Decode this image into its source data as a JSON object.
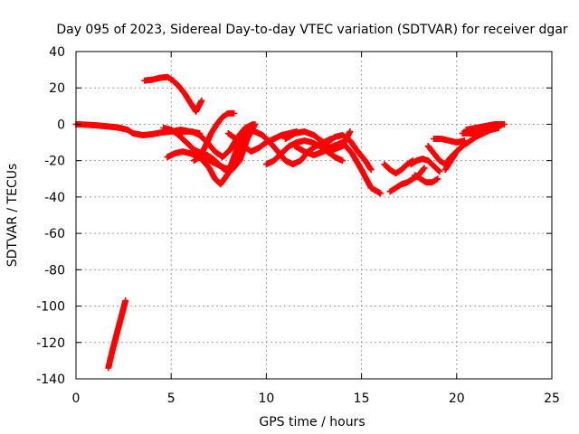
{
  "chart_data": {
    "type": "scatter",
    "title": "Day 095 of 2023, Sidereal Day-to-day VTEC variation (SDTVAR) for receiver dgar",
    "xlabel": "GPS time / hours",
    "ylabel": "SDTVAR / TECUs",
    "xlim": [
      0,
      25
    ],
    "ylim": [
      -140,
      40
    ],
    "xticks": [
      0,
      5,
      10,
      15,
      20,
      25
    ],
    "xtick_labels": [
      "0",
      "5",
      "10",
      "15",
      "20",
      "25"
    ],
    "yticks": [
      40,
      20,
      0,
      -20,
      -40,
      -60,
      -80,
      -100,
      -120,
      -140
    ],
    "ytick_labels": [
      "40",
      "20",
      "0",
      "-20",
      "-40",
      "-60",
      "-80",
      "-100",
      "-120",
      "-140"
    ],
    "grid": true,
    "marker": "+",
    "color": "#ff0000",
    "series": [
      {
        "name": "s1",
        "x": [
          0,
          1,
          1.5,
          2,
          2.3,
          2.7,
          3,
          3.5,
          4,
          4.5,
          5,
          5.5,
          6,
          6.5
        ],
        "y": [
          0,
          -0.5,
          -1,
          -1.5,
          -2,
          -3,
          -5,
          -6,
          -5.5,
          -4.5,
          -4,
          -3,
          -4,
          -5
        ]
      },
      {
        "name": "s2",
        "x": [
          3.6,
          4,
          4.4,
          4.8,
          5.1,
          5.4,
          5.7,
          6,
          6.3,
          6.6
        ],
        "y": [
          24,
          24.5,
          25.5,
          26,
          24,
          21,
          17,
          12,
          7,
          13
        ]
      },
      {
        "name": "s3",
        "x": [
          1.7,
          1.9,
          2.1,
          2.3,
          2.5,
          2.6
        ],
        "y": [
          -134,
          -125,
          -117,
          -109,
          -101,
          -97
        ]
      },
      {
        "name": "s4",
        "x": [
          4.8,
          5.2,
          5.6,
          6,
          6.5,
          7,
          7.3,
          7.6,
          8,
          8.4,
          8.8
        ],
        "y": [
          -18,
          -16,
          -15,
          -16,
          -18,
          -24,
          -30,
          -33,
          -27,
          -15,
          -3
        ]
      },
      {
        "name": "s5",
        "x": [
          4.6,
          5,
          5.4,
          5.8,
          6.2,
          6.6,
          7,
          7.4,
          7.8,
          8.2,
          8.6,
          9,
          9.4
        ],
        "y": [
          -2,
          -3,
          -6,
          -10,
          -14,
          -16,
          -20,
          -22,
          -24,
          -25,
          -20,
          -8,
          0
        ]
      },
      {
        "name": "s6",
        "x": [
          6.6,
          6.9,
          7.2,
          7.5,
          7.8,
          8.1,
          8.4,
          8.7,
          9,
          9.4
        ],
        "y": [
          -15,
          -17,
          -19,
          -22,
          -25,
          -24,
          -18,
          -10,
          -3,
          0
        ]
      },
      {
        "name": "s7",
        "x": [
          6.2,
          6.5,
          6.8,
          7.1,
          7.4,
          7.7,
          8,
          8.3
        ],
        "y": [
          -20,
          -18,
          -12,
          -5,
          0,
          4,
          6,
          6
        ]
      },
      {
        "name": "s8",
        "x": [
          5.3,
          5.7,
          6.1,
          6.5,
          6.9,
          7.3,
          7.7,
          8.1,
          8.5,
          8.9,
          9.3
        ],
        "y": [
          -5,
          -4,
          -4,
          -6,
          -10,
          -15,
          -18,
          -14,
          -7,
          -2,
          0
        ]
      },
      {
        "name": "s9",
        "x": [
          8,
          8.4,
          8.8,
          9.2,
          9.6,
          10,
          10.4,
          10.8,
          11.2,
          11.6
        ],
        "y": [
          -5,
          -8,
          -12,
          -15,
          -13,
          -10,
          -8,
          -6,
          -5,
          -4
        ]
      },
      {
        "name": "s10",
        "x": [
          9,
          9.4,
          9.8,
          10.2,
          10.6,
          11,
          11.4,
          11.8,
          12.2,
          12.6,
          13,
          13.4
        ],
        "y": [
          -3,
          -4,
          -6,
          -10,
          -15,
          -20,
          -22,
          -20,
          -15,
          -12,
          -10,
          -8
        ]
      },
      {
        "name": "s11",
        "x": [
          10,
          10.4,
          10.8,
          11.2,
          11.6,
          12,
          12.4,
          12.8,
          13.2,
          13.6,
          14
        ],
        "y": [
          -22,
          -20,
          -16,
          -12,
          -10,
          -9,
          -10,
          -12,
          -15,
          -18,
          -20
        ]
      },
      {
        "name": "s12",
        "x": [
          11,
          11.5,
          12,
          12.5,
          13,
          13.5,
          14,
          14.4
        ],
        "y": [
          -8,
          -5,
          -4,
          -6,
          -10,
          -14,
          -12,
          -4
        ]
      },
      {
        "name": "s13",
        "x": [
          11.5,
          12,
          12.5,
          13,
          13.5,
          14,
          14.5,
          15,
          15.5,
          16
        ],
        "y": [
          -12,
          -15,
          -17,
          -15,
          -12,
          -10,
          -16,
          -25,
          -35,
          -38
        ]
      },
      {
        "name": "s14",
        "x": [
          13.2,
          13.6,
          14,
          14.4,
          14.8,
          15.2,
          15.5
        ],
        "y": [
          -10,
          -7,
          -6,
          -9,
          -15,
          -20,
          -25
        ]
      },
      {
        "name": "s15",
        "x": [
          16.2,
          16.5,
          16.8,
          17.1,
          17.4,
          17.7
        ],
        "y": [
          -22,
          -25,
          -27,
          -25,
          -22,
          -20
        ]
      },
      {
        "name": "s16",
        "x": [
          16.5,
          16.8,
          17.1,
          17.4,
          17.7,
          18,
          18.3
        ],
        "y": [
          -37,
          -35,
          -33,
          -32,
          -30,
          -28,
          -24
        ]
      },
      {
        "name": "s17",
        "x": [
          17.6,
          17.9,
          18.2,
          18.5,
          18.8,
          19.1
        ],
        "y": [
          -22,
          -20,
          -19,
          -20,
          -23,
          -26
        ]
      },
      {
        "name": "s18",
        "x": [
          17.8,
          18.1,
          18.4,
          18.7,
          19
        ],
        "y": [
          -28,
          -30,
          -32,
          -32,
          -30
        ]
      },
      {
        "name": "s19",
        "x": [
          18.5,
          18.8,
          19.1,
          19.4,
          19.7,
          20
        ],
        "y": [
          -12,
          -16,
          -20,
          -22,
          -18,
          -15
        ]
      },
      {
        "name": "s20",
        "x": [
          18.8,
          19.2,
          19.6,
          20,
          20.4
        ],
        "y": [
          -8,
          -8,
          -9,
          -10,
          -9
        ]
      },
      {
        "name": "s21",
        "x": [
          19.4,
          19.7,
          20,
          20.3,
          20.6,
          21,
          21.4,
          21.8,
          22.2
        ],
        "y": [
          -25,
          -20,
          -15,
          -12,
          -10,
          -7,
          -5,
          -3,
          -2
        ]
      },
      {
        "name": "s22",
        "x": [
          20.5,
          21,
          21.5,
          22,
          22.5
        ],
        "y": [
          -3,
          -2,
          -1,
          0,
          0
        ]
      },
      {
        "name": "s23",
        "x": [
          20.3,
          20.8,
          21.3,
          21.8,
          22.2
        ],
        "y": [
          -5,
          -5,
          -4,
          -3,
          -2
        ]
      }
    ]
  }
}
